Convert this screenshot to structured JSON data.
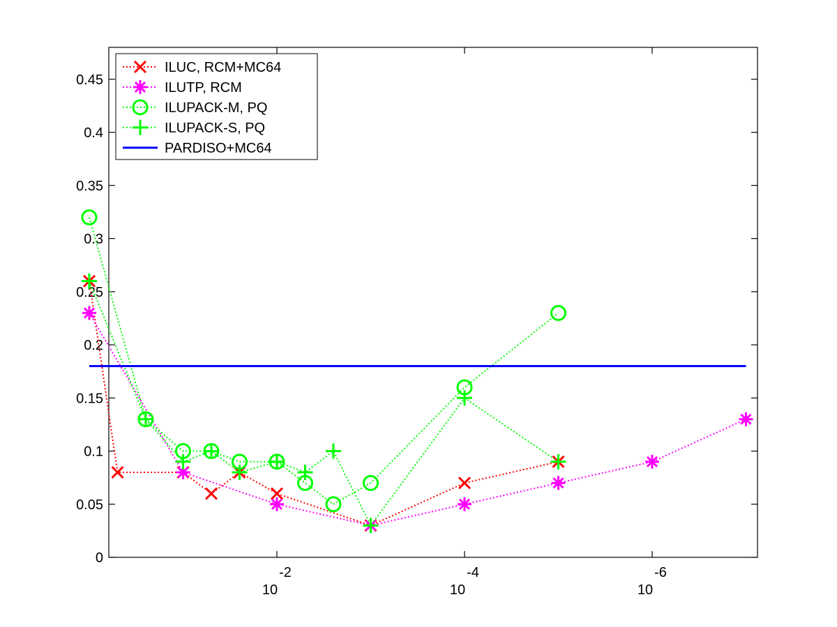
{
  "chart_data": {
    "type": "line",
    "title": "",
    "xlabel": "",
    "ylabel": "",
    "x_scale": "log-decreasing",
    "xlim": [
      2.0,
      1e-07
    ],
    "ylim": [
      0,
      0.48
    ],
    "grid": false,
    "legend_position": "top-left",
    "x_ticks": [
      {
        "value": 0.01,
        "base": "10",
        "exp": "-2"
      },
      {
        "value": 0.0001,
        "base": "10",
        "exp": "-4"
      },
      {
        "value": 1e-06,
        "base": "10",
        "exp": "-6"
      }
    ],
    "y_ticks": [
      {
        "value": 0,
        "label": "0"
      },
      {
        "value": 0.05,
        "label": "0.05"
      },
      {
        "value": 0.1,
        "label": "0.1"
      },
      {
        "value": 0.15,
        "label": "0.15"
      },
      {
        "value": 0.2,
        "label": "0.2"
      },
      {
        "value": 0.25,
        "label": "0.25"
      },
      {
        "value": 0.3,
        "label": "0.3"
      },
      {
        "value": 0.35,
        "label": "0.35"
      },
      {
        "value": 0.4,
        "label": "0.4"
      },
      {
        "value": 0.45,
        "label": "0.45"
      }
    ],
    "series": [
      {
        "name": "ILUC, RCM+MC64",
        "color": "#ff0000",
        "marker": "x",
        "line": "dotted",
        "x": [
          1,
          0.5,
          0.1,
          0.05,
          0.025,
          0.01,
          0.001,
          0.0001,
          1e-05
        ],
        "y": [
          0.26,
          0.08,
          0.08,
          0.06,
          0.08,
          0.06,
          0.03,
          0.07,
          0.09
        ]
      },
      {
        "name": "ILUTP, RCM",
        "color": "#ff00ff",
        "marker": "asterisk",
        "line": "dotted",
        "x": [
          1,
          0.1,
          0.01,
          0.001,
          0.0001,
          1e-05,
          1e-06,
          1e-07
        ],
        "y": [
          0.23,
          0.08,
          0.05,
          0.03,
          0.05,
          0.07,
          0.09,
          0.13
        ]
      },
      {
        "name": "ILUPACK-M, PQ",
        "color": "#00ff00",
        "marker": "circle",
        "line": "dotted",
        "x": [
          1,
          0.25,
          0.1,
          0.05,
          0.025,
          0.01,
          0.005,
          0.0025,
          0.001,
          0.0001,
          1e-05
        ],
        "y": [
          0.32,
          0.13,
          0.1,
          0.1,
          0.09,
          0.09,
          0.07,
          0.05,
          0.07,
          0.16,
          0.23
        ]
      },
      {
        "name": "ILUPACK-S, PQ",
        "color": "#00ff00",
        "marker": "plus",
        "line": "dotted",
        "x": [
          1,
          0.25,
          0.1,
          0.05,
          0.025,
          0.01,
          0.005,
          0.0025,
          0.001,
          0.0001,
          1e-05
        ],
        "y": [
          0.26,
          0.13,
          0.09,
          0.1,
          0.08,
          0.09,
          0.08,
          0.1,
          0.03,
          0.15,
          0.09
        ]
      },
      {
        "name": "PARDISO+MC64",
        "color": "#0000ff",
        "marker": "none",
        "line": "solid",
        "x": [
          1,
          1e-07
        ],
        "y": [
          0.18,
          0.18
        ]
      }
    ]
  }
}
